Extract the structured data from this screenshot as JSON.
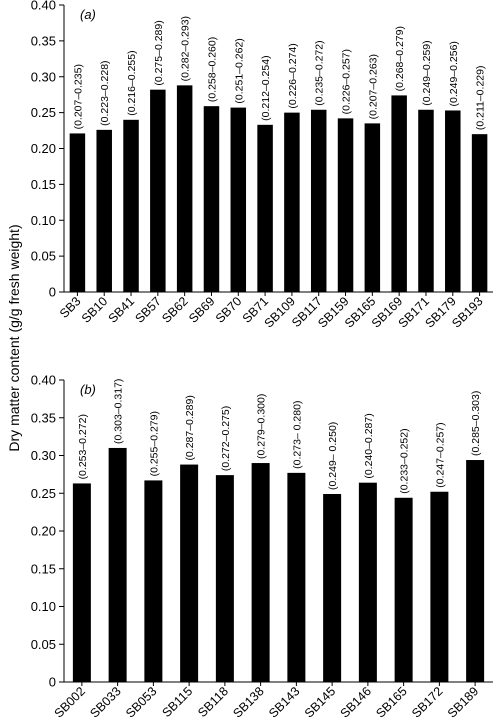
{
  "ylabel": "Dry matter content (g/g fresh weight)",
  "chart_data": [
    {
      "type": "bar",
      "panel": "(a)",
      "ylim": [
        0,
        0.4
      ],
      "yticks": [
        "0",
        "0.05",
        "0.10",
        "0.15",
        "0.20",
        "0.25",
        "0.30",
        "0.35",
        "0.40"
      ],
      "categories": [
        "SB3",
        "SB10",
        "SB41",
        "SB57",
        "SB62",
        "SB69",
        "SB70",
        "SB71",
        "SB109",
        "SB117",
        "SB159",
        "SB165",
        "SB169",
        "SB171",
        "SB179",
        "SB193"
      ],
      "values": [
        0.221,
        0.226,
        0.24,
        0.282,
        0.288,
        0.259,
        0.257,
        0.233,
        0.25,
        0.254,
        0.242,
        0.235,
        0.274,
        0.254,
        0.253,
        0.22
      ],
      "ranges": [
        "(0.207–0.235)",
        "(0.223–0.228)",
        "(0.216–0.255)",
        "(0.275–0.289)",
        "(0.282–0.293)",
        "(0.258–0.260)",
        "(0.251–0.262)",
        "(0.212–0.254)",
        "(0.226–0.274)",
        "(0.235–0.272)",
        "(0.226–0.257)",
        "(0.207–0.263)",
        "(0.268–0.279)",
        "(0.249–0.259)",
        "(0.249–0.256)",
        "(0.211–0.229)"
      ],
      "bar_color": "#000000",
      "grid": false,
      "legend": "none"
    },
    {
      "type": "bar",
      "panel": "(b)",
      "ylim": [
        0,
        0.4
      ],
      "yticks": [
        "0",
        "0.05",
        "0.10",
        "0.15",
        "0.20",
        "0.25",
        "0.30",
        "0.35",
        "0.40"
      ],
      "categories": [
        "SB002",
        "SB033",
        "SB053",
        "SB115",
        "SB118",
        "SB138",
        "SB143",
        "SB145",
        "SB146",
        "SB165",
        "SB172",
        "SB189"
      ],
      "values": [
        0.263,
        0.31,
        0.267,
        0.288,
        0.274,
        0.29,
        0.277,
        0.249,
        0.264,
        0.244,
        0.252,
        0.294
      ],
      "ranges": [
        "(0.253–0.272)",
        "(0.303–0.317)",
        "(0.255–0.279)",
        "(0.287–0.289)",
        "(0.272–0.275)",
        "(0.279–0.300)",
        "(0.273– 0.280)",
        "(0.249– 0.250)",
        "(0.240–0.287)",
        "(0.233–0.252)",
        "(0.247–0.257)",
        "(0.285–0.303)"
      ],
      "bar_color": "#000000",
      "grid": false,
      "legend": "none"
    }
  ]
}
